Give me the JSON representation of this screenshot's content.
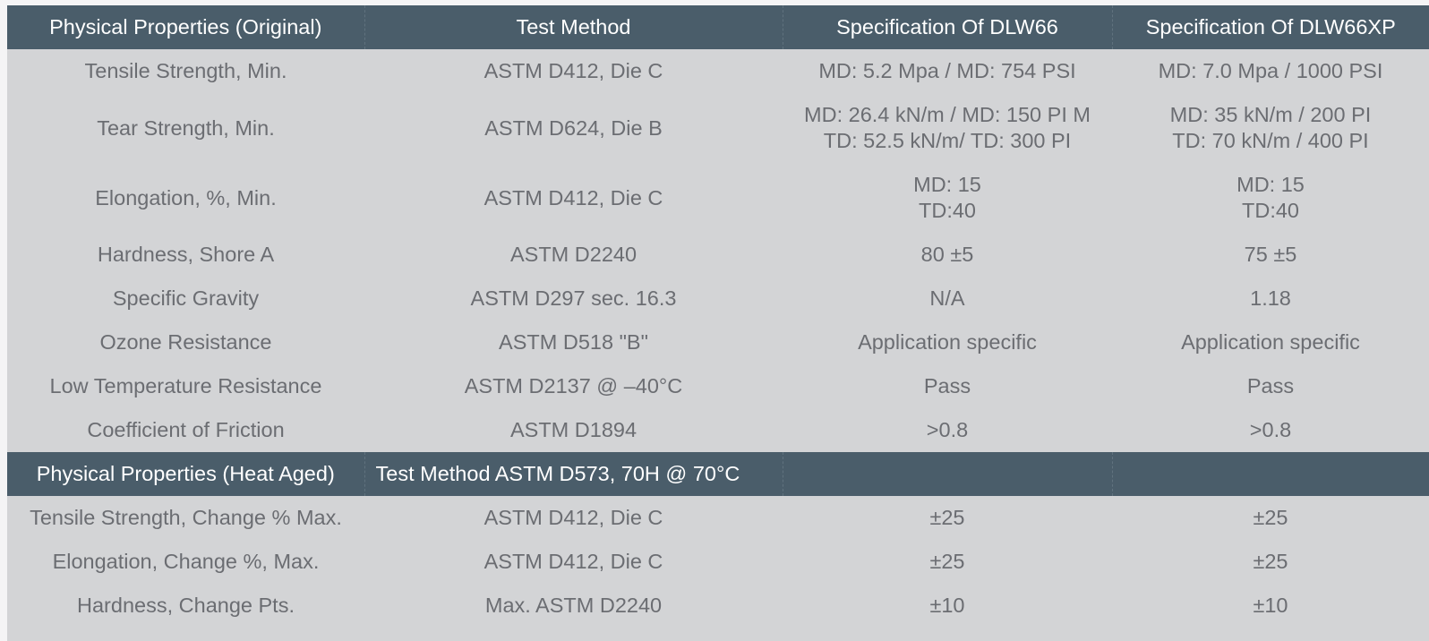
{
  "header": {
    "col1": "Physical Properties (Original)",
    "col2": "Test Method",
    "col3": "Specification Of DLW66",
    "col4": "Specification Of DLW66XP"
  },
  "original_rows": [
    {
      "property": "Tensile Strength, Min.",
      "method": "ASTM D412, Die C",
      "dlw66": [
        "MD: 5.2 Mpa / MD: 754 PSI"
      ],
      "dlw66xp": [
        "MD: 7.0 Mpa / 1000 PSI"
      ]
    },
    {
      "property": "Tear Strength, Min.",
      "method": "ASTM D624, Die B",
      "dlw66": [
        "MD: 26.4 kN/m / MD: 150 PI M",
        "TD: 52.5 kN/m/ TD: 300 PI"
      ],
      "dlw66xp": [
        "MD: 35 kN/m / 200 PI",
        "TD: 70 kN/m / 400 PI"
      ]
    },
    {
      "property": "Elongation, %, Min.",
      "method": "ASTM D412, Die C",
      "dlw66": [
        "MD: 15",
        "TD:40"
      ],
      "dlw66xp": [
        "MD: 15",
        "TD:40"
      ]
    },
    {
      "property": "Hardness, Shore A",
      "method": "ASTM D2240",
      "dlw66": [
        "80 ±5"
      ],
      "dlw66xp": [
        "75 ±5"
      ]
    },
    {
      "property": "Specific Gravity",
      "method": "ASTM D297 sec. 16.3",
      "dlw66": [
        "N/A"
      ],
      "dlw66xp": [
        "1.18"
      ]
    },
    {
      "property": "Ozone Resistance",
      "method": "ASTM D518 \"B\"",
      "dlw66": [
        "Application specific"
      ],
      "dlw66xp": [
        "Application specific"
      ]
    },
    {
      "property": "Low Temperature Resistance",
      "method": "ASTM D2137 @ –40°C",
      "dlw66": [
        "Pass"
      ],
      "dlw66xp": [
        "Pass"
      ]
    },
    {
      "property": "Coefficient of Friction",
      "method": "ASTM D1894",
      "dlw66": [
        ">0.8"
      ],
      "dlw66xp": [
        ">0.8"
      ]
    }
  ],
  "heat_aged_header": {
    "col1": "Physical Properties (Heat Aged)",
    "col2": "Test Method ASTM D573, 70H @ 70°C",
    "col3": "",
    "col4": ""
  },
  "heat_aged_rows": [
    {
      "property": "Tensile Strength, Change % Max.",
      "method": "ASTM D412, Die C",
      "dlw66": [
        "±25"
      ],
      "dlw66xp": [
        "±25"
      ]
    },
    {
      "property": "Elongation, Change %, Max.",
      "method": "ASTM D412, Die C",
      "dlw66": [
        "±25"
      ],
      "dlw66xp": [
        "±25"
      ]
    },
    {
      "property": "Hardness, Change Pts.",
      "method": "Max. ASTM D2240",
      "dlw66": [
        "±10"
      ],
      "dlw66xp": [
        "±10"
      ]
    }
  ],
  "colors": {
    "header_bg": "#4a5d6a",
    "header_text": "#ffffff",
    "body_bg": "#d3d4d6",
    "body_text": "#6b6d72"
  }
}
